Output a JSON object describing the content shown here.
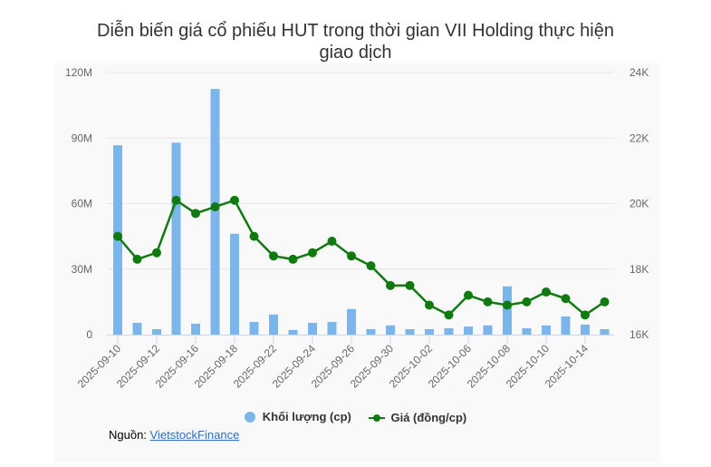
{
  "title_line1": "Diễn biến giá cổ phiếu HUT trong thời gian VII Holding thực hiện",
  "title_line2": "giao dịch",
  "colors": {
    "volume_bar": "#7cb5ec",
    "price_line": "#107a10",
    "grid": "#e6e6e6",
    "panel_bg": "#f9f9f9"
  },
  "legend": {
    "volume": "Khối lượng (cp)",
    "price": "Giá (đồng/cp)"
  },
  "source": {
    "label": "Nguồn: ",
    "link_text": "VietstockFinance"
  },
  "chart_data": {
    "type": "bar+line",
    "title": "Diễn biến giá cổ phiếu HUT trong thời gian VII Holding thực hiện giao dịch",
    "x": [
      "2025-09-10",
      "2025-09-11",
      "2025-09-12",
      "2025-09-15",
      "2025-09-16",
      "2025-09-17",
      "2025-09-18",
      "2025-09-19",
      "2025-09-22",
      "2025-09-23",
      "2025-09-24",
      "2025-09-25",
      "2025-09-26",
      "2025-09-29",
      "2025-09-30",
      "2025-10-01",
      "2025-10-02",
      "2025-10-03",
      "2025-10-06",
      "2025-10-07",
      "2025-10-08",
      "2025-10-09",
      "2025-10-10",
      "2025-10-13",
      "2025-10-14",
      "2025-10-15"
    ],
    "x_tick_labels": [
      "2025-09-10",
      "2025-09-12",
      "2025-09-16",
      "2025-09-18",
      "2025-09-22",
      "2025-09-24",
      "2025-09-26",
      "2025-09-30",
      "2025-10-02",
      "2025-10-06",
      "2025-10-08",
      "2025-10-10",
      "2025-10-14"
    ],
    "series": [
      {
        "name": "Khối lượng (cp)",
        "type": "bar",
        "axis": "left",
        "values": [
          86700000,
          5400000,
          2500000,
          87900000,
          5000000,
          112500000,
          46200000,
          5800000,
          9200000,
          2100000,
          5400000,
          5800000,
          11700000,
          2500000,
          4200000,
          2500000,
          2500000,
          2900000,
          3700000,
          4200000,
          22100000,
          2900000,
          4200000,
          8300000,
          4600000,
          2500000
        ]
      },
      {
        "name": "Giá (đồng/cp)",
        "type": "line",
        "axis": "right",
        "values": [
          19000,
          18300,
          18500,
          20100,
          19700,
          19900,
          20100,
          19000,
          18400,
          18300,
          18500,
          18850,
          18400,
          18100,
          17500,
          17500,
          16900,
          16600,
          17200,
          17000,
          16900,
          17000,
          17300,
          17100,
          16600,
          17000
        ]
      }
    ],
    "y_left": {
      "label": "",
      "ticks": [
        "0",
        "30M",
        "60M",
        "90M",
        "120M"
      ],
      "range": [
        0,
        120000000
      ]
    },
    "y_right": {
      "label": "",
      "ticks": [
        "16K",
        "18K",
        "20K",
        "22K",
        "24K"
      ],
      "range": [
        16000,
        24000
      ]
    },
    "grid": true,
    "legend_position": "bottom"
  }
}
